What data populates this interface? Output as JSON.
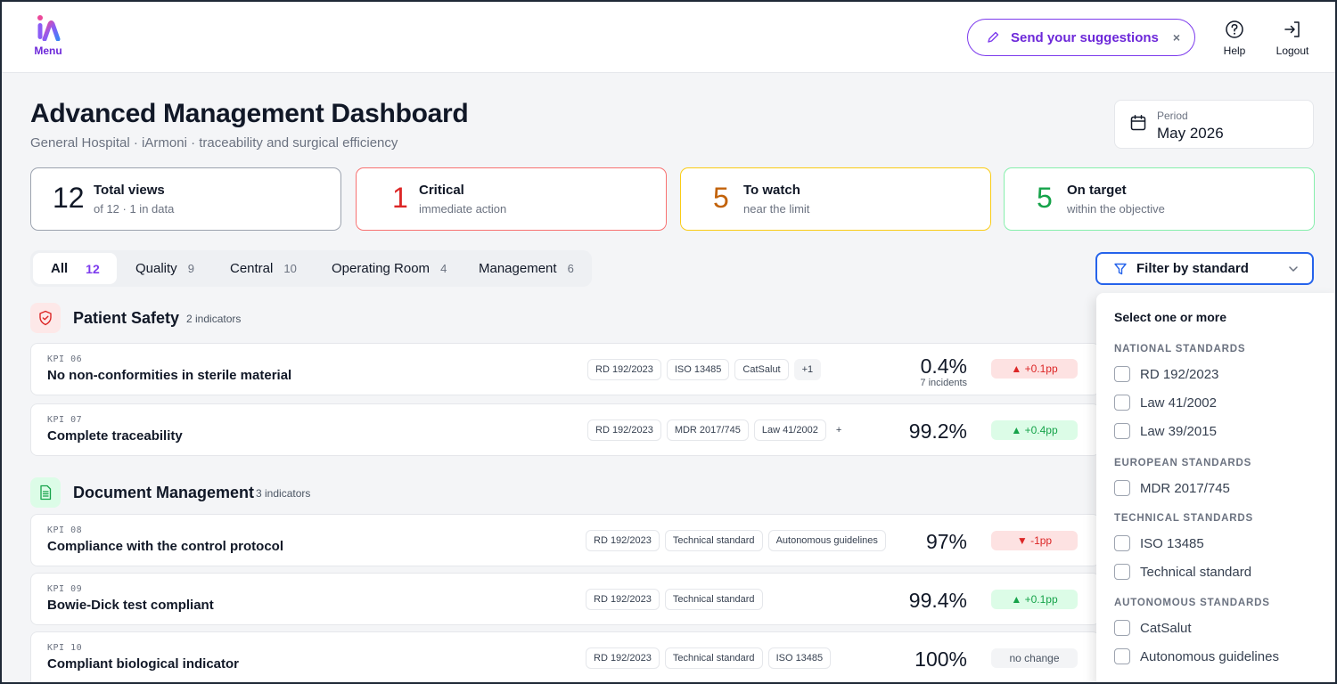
{
  "app": {
    "logo_label": "Menu"
  },
  "topbar": {
    "suggest_label": "Send your suggestions",
    "suggest_close": "×",
    "help_label": "Help",
    "logout_label": "Logout"
  },
  "header": {
    "title": "Advanced Management Dashboard",
    "subtitle": "General Hospital · iArmoni · traceability and surgical efficiency",
    "period_label": "Period",
    "period_value": "May 2026"
  },
  "summary": [
    {
      "num": "12",
      "label": "Total views",
      "sub": "of  12  · 1 in data",
      "color": "#111827",
      "border": "#9ca3af"
    },
    {
      "num": "1",
      "label": "Critical",
      "sub": "immediate action",
      "color": "#dc2626",
      "border": "#f87171"
    },
    {
      "num": "5",
      "label": "To watch",
      "sub": "near the limit",
      "color": "#c2620a",
      "border": "#facc15"
    },
    {
      "num": "5",
      "label": "On target",
      "sub": "within the objective",
      "color": "#16a34a",
      "border": "#86efac"
    }
  ],
  "tabs": [
    {
      "label": "All",
      "count": "12"
    },
    {
      "label": "Quality",
      "count": "9"
    },
    {
      "label": "Central",
      "count": "10"
    },
    {
      "label": "Operating Room",
      "count": "4"
    },
    {
      "label": "Management",
      "count": "6"
    }
  ],
  "filter": {
    "label": "Filter by standard"
  },
  "sections": [
    {
      "title": "Patient Safety",
      "count": "2 indicators",
      "kpis": [
        {
          "code": "KPI 06",
          "name": "No non-conformities in sterile material",
          "tags": [
            "RD 192/2023",
            "ISO 13485",
            "CatSalut",
            "+1"
          ],
          "value": "0.4%",
          "value_sub": "7 incidents",
          "trend": "▲ +0.1pp"
        },
        {
          "code": "KPI 07",
          "name": "Complete traceability",
          "tags": [
            "RD 192/2023",
            "MDR 2017/745",
            "Law 41/2002",
            "+"
          ],
          "value": "99.2%",
          "trend": "▲ +0.4pp"
        }
      ]
    },
    {
      "title": "Document Management",
      "count": "3 indicators",
      "kpis": [
        {
          "code": "KPI 08",
          "name": "Compliance with the control protocol",
          "tags": [
            "RD 192/2023",
            "Technical standard",
            "Autonomous guidelines"
          ],
          "value": "97%",
          "trend": "▼ -1pp"
        },
        {
          "code": "KPI 09",
          "name": "Bowie-Dick test compliant",
          "tags": [
            "RD 192/2023",
            "Technical standard"
          ],
          "value": "99.4%",
          "trend": "▲ +0.1pp"
        },
        {
          "code": "KPI 10",
          "name": "Compliant biological indicator",
          "tags": [
            "RD 192/2023",
            "Technical standard",
            "ISO 13485"
          ],
          "value": "100%",
          "trend": "no change"
        }
      ]
    }
  ],
  "dropdown": {
    "heading": "Select one or more",
    "groups": [
      {
        "title": "NATIONAL STANDARDS",
        "options": [
          "RD 192/2023",
          "Law 41/2002",
          "Law 39/2015"
        ]
      },
      {
        "title": "EUROPEAN STANDARDS",
        "options": [
          "MDR 2017/745"
        ]
      },
      {
        "title": "TECHNICAL STANDARDS",
        "options": [
          "ISO 13485",
          "Technical standard"
        ]
      },
      {
        "title": "AUTONOMOUS STANDARDS",
        "options": [
          "CatSalut",
          "Autonomous guidelines"
        ]
      }
    ]
  }
}
